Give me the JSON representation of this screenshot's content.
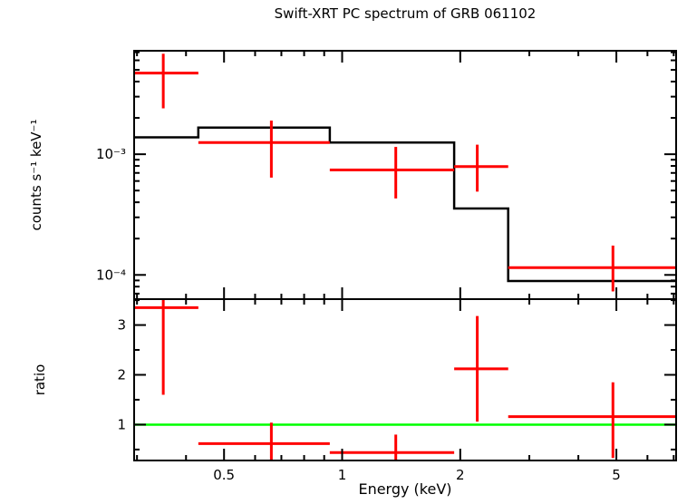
{
  "colors": {
    "background": "#ffffff",
    "frame": "#000000",
    "data": "#ff0000",
    "model": "#000000",
    "reference_line": "#00ff00"
  },
  "chart_data": [
    {
      "type": "line",
      "panel": "spectrum",
      "title": "Swift-XRT PC spectrum of GRB 061102",
      "ylabel": "counts s⁻¹ keV⁻¹",
      "xscale": "log",
      "yscale": "log",
      "xlim": [
        0.295,
        7.1
      ],
      "ylim": [
        6.3e-05,
        0.0072
      ],
      "xticks": [
        0.5,
        1,
        2,
        5
      ],
      "xtick_labels": [
        "0.5",
        "1",
        "2",
        "5"
      ],
      "xticks_minor": [
        0.3,
        0.4,
        0.6,
        0.7,
        0.8,
        0.9,
        3,
        4,
        6,
        7
      ],
      "yticks": [
        0.0001,
        0.001
      ],
      "ytick_labels": [
        "10⁻⁴",
        "10⁻³"
      ],
      "yticks_minor": [
        7e-05,
        8e-05,
        9e-05,
        0.0002,
        0.0003,
        0.0004,
        0.0005,
        0.0006,
        0.0007,
        0.0008,
        0.0009,
        0.002,
        0.003,
        0.004,
        0.005,
        0.006,
        0.007
      ],
      "series": [
        {
          "name": "observed counts",
          "style": "errorbar-cross",
          "color": "#ff0000",
          "points": [
            {
              "x": 0.35,
              "xlo": 0.29,
              "xhi": 0.43,
              "y": 0.0047,
              "ylo": 0.0024,
              "yhi": 0.0068
            },
            {
              "x": 0.66,
              "xlo": 0.43,
              "xhi": 0.93,
              "y": 0.00125,
              "ylo": 0.00064,
              "yhi": 0.0019
            },
            {
              "x": 1.37,
              "xlo": 0.93,
              "xhi": 1.93,
              "y": 0.00074,
              "ylo": 0.00043,
              "yhi": 0.00115
            },
            {
              "x": 2.21,
              "xlo": 1.93,
              "xhi": 2.65,
              "y": 0.00079,
              "ylo": 0.00049,
              "yhi": 0.0012
            },
            {
              "x": 4.9,
              "xlo": 2.65,
              "xhi": 7.1,
              "y": 0.000115,
              "ylo": 7.3e-05,
              "yhi": 0.000175
            }
          ]
        },
        {
          "name": "folded model",
          "style": "steps",
          "color": "#000000",
          "steps": [
            {
              "x0": 0.295,
              "x1": 0.43,
              "y": 0.00138
            },
            {
              "x0": 0.43,
              "x1": 0.93,
              "y": 0.00166
            },
            {
              "x0": 0.93,
              "x1": 1.93,
              "y": 0.00125
            },
            {
              "x0": 1.93,
              "x1": 2.65,
              "y": 0.000355
            },
            {
              "x0": 2.65,
              "x1": 7.1,
              "y": 8.9e-05
            }
          ]
        }
      ]
    },
    {
      "type": "line",
      "panel": "ratio",
      "ylabel": "ratio",
      "xlabel": "Energy (keV)",
      "xscale": "log",
      "yscale": "linear",
      "xlim": [
        0.295,
        7.1
      ],
      "ylim": [
        0.28,
        3.52
      ],
      "xticks": [
        0.5,
        1,
        2,
        5
      ],
      "xtick_labels": [
        "0.5",
        "1",
        "2",
        "5"
      ],
      "xticks_minor": [
        0.3,
        0.4,
        0.6,
        0.7,
        0.8,
        0.9,
        3,
        4,
        6,
        7
      ],
      "yticks": [
        1,
        2,
        3
      ],
      "ytick_labels": [
        "1",
        "2",
        "3"
      ],
      "yticks_minor": [
        0.5,
        1.5,
        2.5,
        3.5
      ],
      "reference_line": {
        "y": 1,
        "color": "#00ff00"
      },
      "series": [
        {
          "name": "data/model ratio",
          "style": "errorbar-cross",
          "color": "#ff0000",
          "points": [
            {
              "x": 0.35,
              "xlo": 0.29,
              "xhi": 0.43,
              "y": 3.35,
              "ylo": 1.6,
              "yhi": 3.6
            },
            {
              "x": 0.66,
              "xlo": 0.43,
              "xhi": 0.93,
              "y": 0.62,
              "ylo": 0.2,
              "yhi": 1.04
            },
            {
              "x": 1.37,
              "xlo": 0.93,
              "xhi": 1.93,
              "y": 0.44,
              "ylo": 0.2,
              "yhi": 0.8
            },
            {
              "x": 2.21,
              "xlo": 1.93,
              "xhi": 2.65,
              "y": 2.12,
              "ylo": 1.06,
              "yhi": 3.18
            },
            {
              "x": 4.9,
              "xlo": 2.65,
              "xhi": 7.1,
              "y": 1.16,
              "ylo": 0.33,
              "yhi": 1.85
            }
          ]
        }
      ]
    }
  ]
}
